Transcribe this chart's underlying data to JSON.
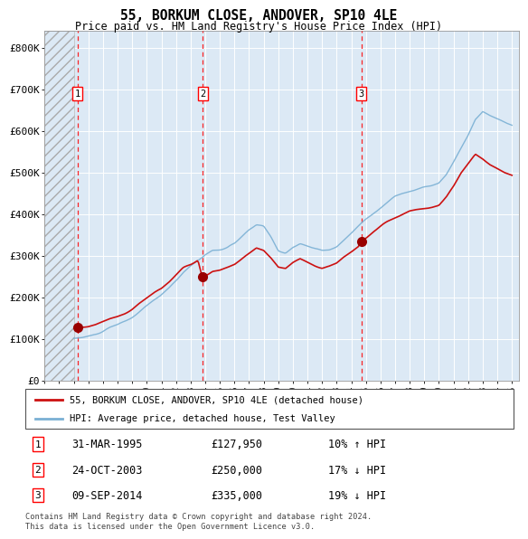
{
  "title": "55, BORKUM CLOSE, ANDOVER, SP10 4LE",
  "subtitle": "Price paid vs. HM Land Registry's House Price Index (HPI)",
  "legend_label_red": "55, BORKUM CLOSE, ANDOVER, SP10 4LE (detached house)",
  "legend_label_blue": "HPI: Average price, detached house, Test Valley",
  "footer1": "Contains HM Land Registry data © Crown copyright and database right 2024.",
  "footer2": "This data is licensed under the Open Government Licence v3.0.",
  "yticks": [
    0,
    100000,
    200000,
    300000,
    400000,
    500000,
    600000,
    700000,
    800000
  ],
  "ytick_labels": [
    "£0",
    "£100K",
    "£200K",
    "£300K",
    "£400K",
    "£500K",
    "£600K",
    "£700K",
    "£800K"
  ],
  "xmin": 1993.0,
  "xmax": 2025.5,
  "ymin": 0,
  "ymax": 840000,
  "transactions": [
    {
      "num": 1,
      "date": "31-MAR-1995",
      "price": 127950,
      "pct": "10%",
      "dir": "↑",
      "x": 1995.25
    },
    {
      "num": 2,
      "date": "24-OCT-2003",
      "price": 250000,
      "pct": "17%",
      "dir": "↓",
      "x": 2003.83
    },
    {
      "num": 3,
      "date": "09-SEP-2014",
      "price": 335000,
      "pct": "19%",
      "dir": "↓",
      "x": 2014.69
    }
  ],
  "hpi_line_color": "#7ab0d4",
  "price_line_color": "#cc1111",
  "bg_color": "#dce9f5",
  "hatch_end_x": 1995.0,
  "xticks": [
    1993,
    1994,
    1995,
    1996,
    1997,
    1998,
    1999,
    2000,
    2001,
    2002,
    2003,
    2004,
    2005,
    2006,
    2007,
    2008,
    2009,
    2010,
    2011,
    2012,
    2013,
    2014,
    2015,
    2016,
    2017,
    2018,
    2019,
    2020,
    2021,
    2022,
    2023,
    2024,
    2025
  ]
}
